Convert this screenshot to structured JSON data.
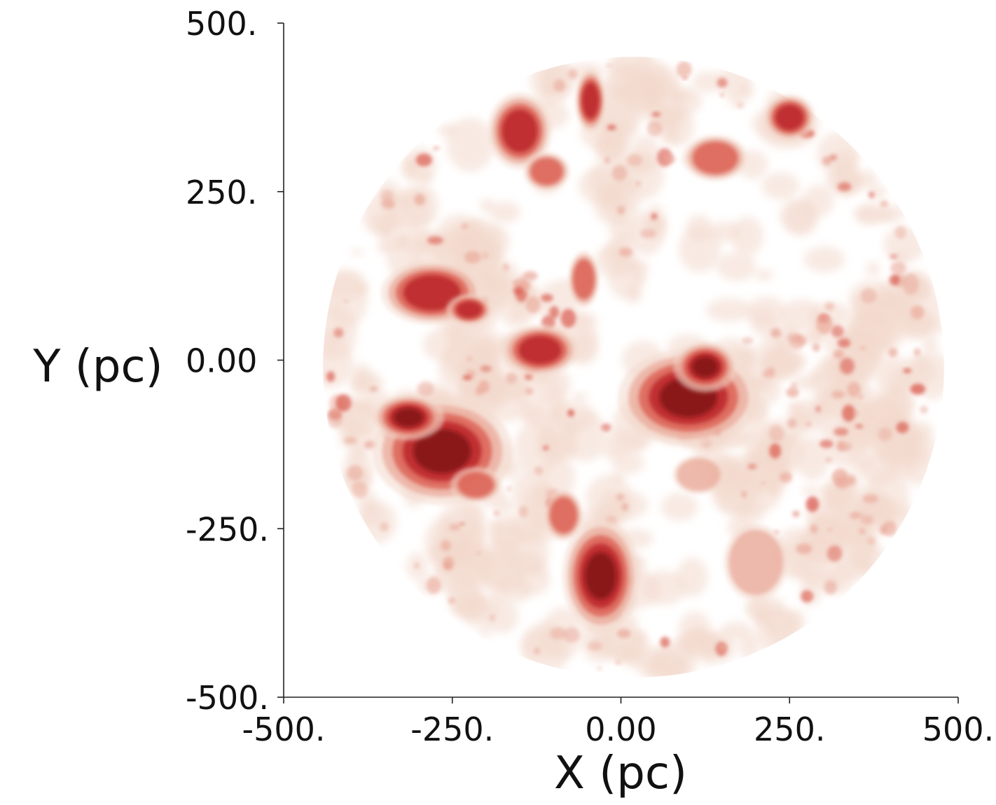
{
  "chart_data": {
    "type": "heatmap",
    "title": "",
    "xlabel": "X (pc)",
    "ylabel": "Y (pc)",
    "xlim": [
      -500,
      500
    ],
    "ylim": [
      -500,
      500
    ],
    "x_ticks": [
      {
        "value": -500,
        "label": "-500."
      },
      {
        "value": -250,
        "label": "-250."
      },
      {
        "value": 0,
        "label": "0.00"
      },
      {
        "value": 250,
        "label": "250."
      },
      {
        "value": 500,
        "label": "500."
      }
    ],
    "y_ticks": [
      {
        "value": 500,
        "label": "500."
      },
      {
        "value": 250,
        "label": "250."
      },
      {
        "value": 0,
        "label": "0.00"
      },
      {
        "value": -250,
        "label": "-250."
      },
      {
        "value": -500,
        "label": "-500."
      }
    ],
    "grid": false,
    "legend": "none",
    "colors": {
      "faint": "#f3d8cc",
      "light": "#eaa99a",
      "medium": "#d9574a",
      "dark": "#b51e20",
      "darkest": "#7a0d12"
    },
    "data_extent_radius_pc": 450,
    "clouds": [
      {
        "x": -265,
        "y": -135,
        "rx": 55,
        "ry": 42,
        "level": 4
      },
      {
        "x": -315,
        "y": -85,
        "rx": 28,
        "ry": 18,
        "level": 4
      },
      {
        "x": 100,
        "y": -55,
        "rx": 55,
        "ry": 38,
        "level": 4
      },
      {
        "x": 125,
        "y": -10,
        "rx": 25,
        "ry": 20,
        "level": 4
      },
      {
        "x": -30,
        "y": -320,
        "rx": 30,
        "ry": 45,
        "level": 4
      },
      {
        "x": -280,
        "y": 100,
        "rx": 40,
        "ry": 25,
        "level": 3
      },
      {
        "x": -225,
        "y": 75,
        "rx": 18,
        "ry": 12,
        "level": 3
      },
      {
        "x": -120,
        "y": 15,
        "rx": 30,
        "ry": 20,
        "level": 3
      },
      {
        "x": -150,
        "y": 340,
        "rx": 25,
        "ry": 30,
        "level": 3
      },
      {
        "x": -45,
        "y": 385,
        "rx": 12,
        "ry": 25,
        "level": 3
      },
      {
        "x": -110,
        "y": 280,
        "rx": 18,
        "ry": 15,
        "level": 2
      },
      {
        "x": 250,
        "y": 360,
        "rx": 20,
        "ry": 18,
        "level": 3
      },
      {
        "x": 140,
        "y": 300,
        "rx": 25,
        "ry": 18,
        "level": 2
      },
      {
        "x": -55,
        "y": 120,
        "rx": 12,
        "ry": 22,
        "level": 2
      },
      {
        "x": -85,
        "y": -230,
        "rx": 15,
        "ry": 20,
        "level": 2
      },
      {
        "x": 115,
        "y": -170,
        "rx": 20,
        "ry": 15,
        "level": 1
      },
      {
        "x": 200,
        "y": -300,
        "rx": 25,
        "ry": 30,
        "level": 1
      },
      {
        "x": -215,
        "y": -185,
        "rx": 20,
        "ry": 14,
        "level": 2
      }
    ]
  }
}
